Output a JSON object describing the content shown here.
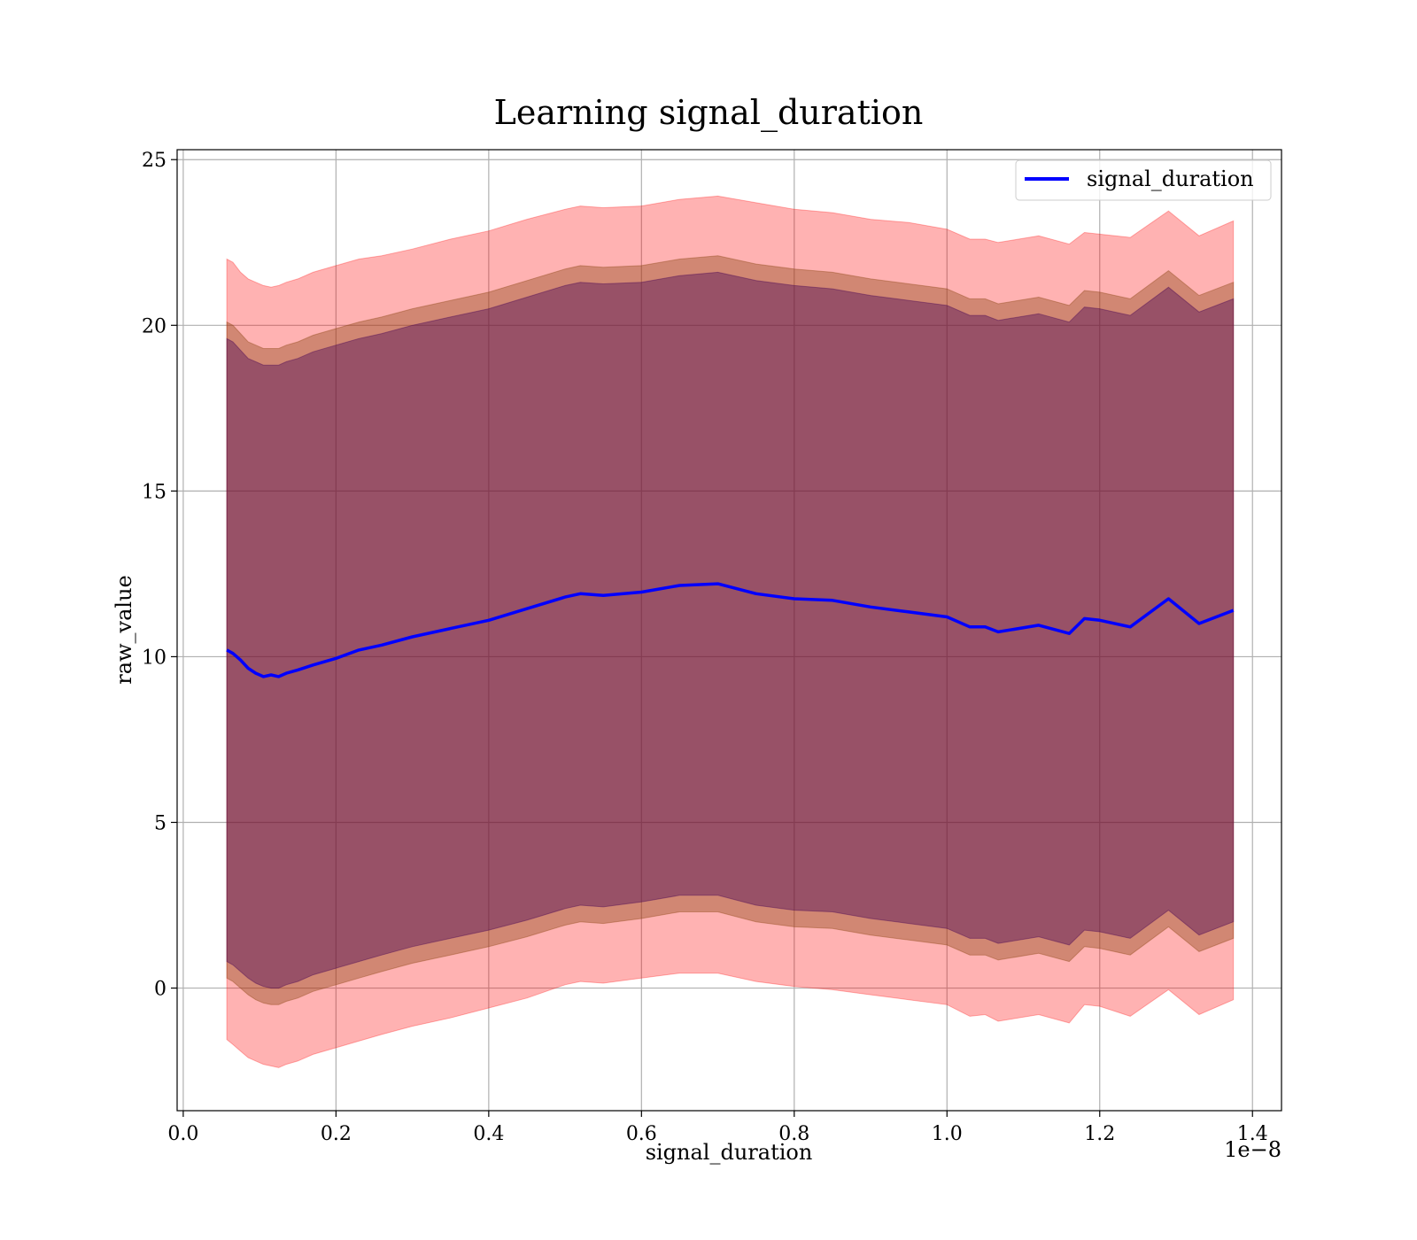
{
  "chart_data": {
    "type": "line",
    "title": "Learning signal_duration",
    "xlabel": "signal_duration",
    "ylabel": "raw_value",
    "x_offset_label": "1e−8",
    "x_ticks": [
      0.0,
      0.2,
      0.4,
      0.6,
      0.8,
      1.0,
      1.2,
      1.4
    ],
    "x_tick_labels": [
      "0.0",
      "0.2",
      "0.4",
      "0.6",
      "0.8",
      "1.0",
      "1.2",
      "1.4"
    ],
    "y_ticks": [
      0,
      5,
      10,
      15,
      20,
      25
    ],
    "y_tick_labels": [
      "0",
      "5",
      "10",
      "15",
      "20",
      "25"
    ],
    "xlim": [
      -0.008,
      1.438
    ],
    "ylim": [
      -3.7,
      25.3
    ],
    "grid": true,
    "legend_position": "top-right",
    "colors": {
      "line": "#0000ff",
      "outer_band": "#ff0000",
      "middle_band": "#8b4513",
      "inner_band": "#440154"
    },
    "series": [
      {
        "name": "signal_duration",
        "x": [
          0.057,
          0.065,
          0.075,
          0.085,
          0.095,
          0.105,
          0.115,
          0.125,
          0.135,
          0.15,
          0.17,
          0.2,
          0.23,
          0.26,
          0.3,
          0.35,
          0.4,
          0.45,
          0.5,
          0.52,
          0.55,
          0.6,
          0.65,
          0.7,
          0.75,
          0.8,
          0.85,
          0.9,
          0.95,
          1.0,
          1.03,
          1.05,
          1.067,
          1.12,
          1.16,
          1.18,
          1.2,
          1.24,
          1.29,
          1.33,
          1.375
        ],
        "y": [
          10.2,
          10.1,
          9.9,
          9.65,
          9.5,
          9.4,
          9.45,
          9.4,
          9.5,
          9.6,
          9.75,
          9.95,
          10.2,
          10.35,
          10.6,
          10.85,
          11.1,
          11.45,
          11.8,
          11.9,
          11.85,
          11.95,
          12.15,
          12.2,
          11.9,
          11.75,
          11.7,
          11.5,
          11.35,
          11.2,
          10.9,
          10.9,
          10.75,
          10.95,
          10.7,
          11.15,
          11.1,
          10.9,
          11.75,
          11.0,
          11.4
        ]
      }
    ],
    "bands": [
      {
        "level": "outer",
        "upper": [
          22.0,
          21.9,
          21.6,
          21.4,
          21.3,
          21.2,
          21.15,
          21.2,
          21.3,
          21.4,
          21.6,
          21.8,
          22.0,
          22.1,
          22.3,
          22.6,
          22.85,
          23.2,
          23.5,
          23.6,
          23.55,
          23.6,
          23.8,
          23.9,
          23.7,
          23.5,
          23.4,
          23.2,
          23.1,
          22.9,
          22.6,
          22.6,
          22.5,
          22.7,
          22.45,
          22.8,
          22.75,
          22.65,
          23.45,
          22.7,
          23.15
        ],
        "lower": [
          -1.55,
          -1.7,
          -1.9,
          -2.1,
          -2.2,
          -2.3,
          -2.35,
          -2.4,
          -2.3,
          -2.2,
          -2.0,
          -1.8,
          -1.6,
          -1.4,
          -1.15,
          -0.9,
          -0.6,
          -0.3,
          0.1,
          0.2,
          0.15,
          0.3,
          0.45,
          0.45,
          0.2,
          0.05,
          -0.05,
          -0.2,
          -0.35,
          -0.5,
          -0.85,
          -0.8,
          -1.0,
          -0.8,
          -1.05,
          -0.5,
          -0.55,
          -0.85,
          -0.05,
          -0.8,
          -0.35
        ]
      },
      {
        "level": "middle",
        "upper": [
          20.1,
          20.0,
          19.75,
          19.5,
          19.4,
          19.3,
          19.3,
          19.3,
          19.4,
          19.5,
          19.7,
          19.9,
          20.1,
          20.25,
          20.5,
          20.75,
          21.0,
          21.35,
          21.7,
          21.8,
          21.75,
          21.8,
          22.0,
          22.1,
          21.85,
          21.7,
          21.6,
          21.4,
          21.25,
          21.1,
          20.8,
          20.8,
          20.65,
          20.85,
          20.6,
          21.05,
          21.0,
          20.8,
          21.65,
          20.9,
          21.3
        ],
        "lower": [
          0.3,
          0.2,
          0.0,
          -0.2,
          -0.35,
          -0.45,
          -0.5,
          -0.5,
          -0.4,
          -0.3,
          -0.1,
          0.1,
          0.3,
          0.5,
          0.75,
          1.0,
          1.25,
          1.55,
          1.9,
          2.0,
          1.95,
          2.1,
          2.3,
          2.3,
          2.0,
          1.85,
          1.8,
          1.6,
          1.45,
          1.3,
          1.0,
          1.0,
          0.85,
          1.05,
          0.8,
          1.25,
          1.2,
          1.0,
          1.85,
          1.1,
          1.5
        ]
      },
      {
        "level": "inner",
        "upper": [
          19.6,
          19.5,
          19.25,
          19.0,
          18.9,
          18.8,
          18.8,
          18.8,
          18.9,
          19.0,
          19.2,
          19.4,
          19.6,
          19.75,
          20.0,
          20.25,
          20.5,
          20.85,
          21.2,
          21.3,
          21.25,
          21.3,
          21.5,
          21.6,
          21.35,
          21.2,
          21.1,
          20.9,
          20.75,
          20.6,
          20.3,
          20.3,
          20.15,
          20.35,
          20.1,
          20.55,
          20.5,
          20.3,
          21.15,
          20.4,
          20.8
        ],
        "lower": [
          0.8,
          0.7,
          0.5,
          0.3,
          0.15,
          0.05,
          0.0,
          0.0,
          0.1,
          0.2,
          0.4,
          0.6,
          0.8,
          1.0,
          1.25,
          1.5,
          1.75,
          2.05,
          2.4,
          2.5,
          2.45,
          2.6,
          2.8,
          2.8,
          2.5,
          2.35,
          2.3,
          2.1,
          1.95,
          1.8,
          1.5,
          1.5,
          1.35,
          1.55,
          1.3,
          1.75,
          1.7,
          1.5,
          2.35,
          1.6,
          2.0
        ]
      }
    ]
  }
}
